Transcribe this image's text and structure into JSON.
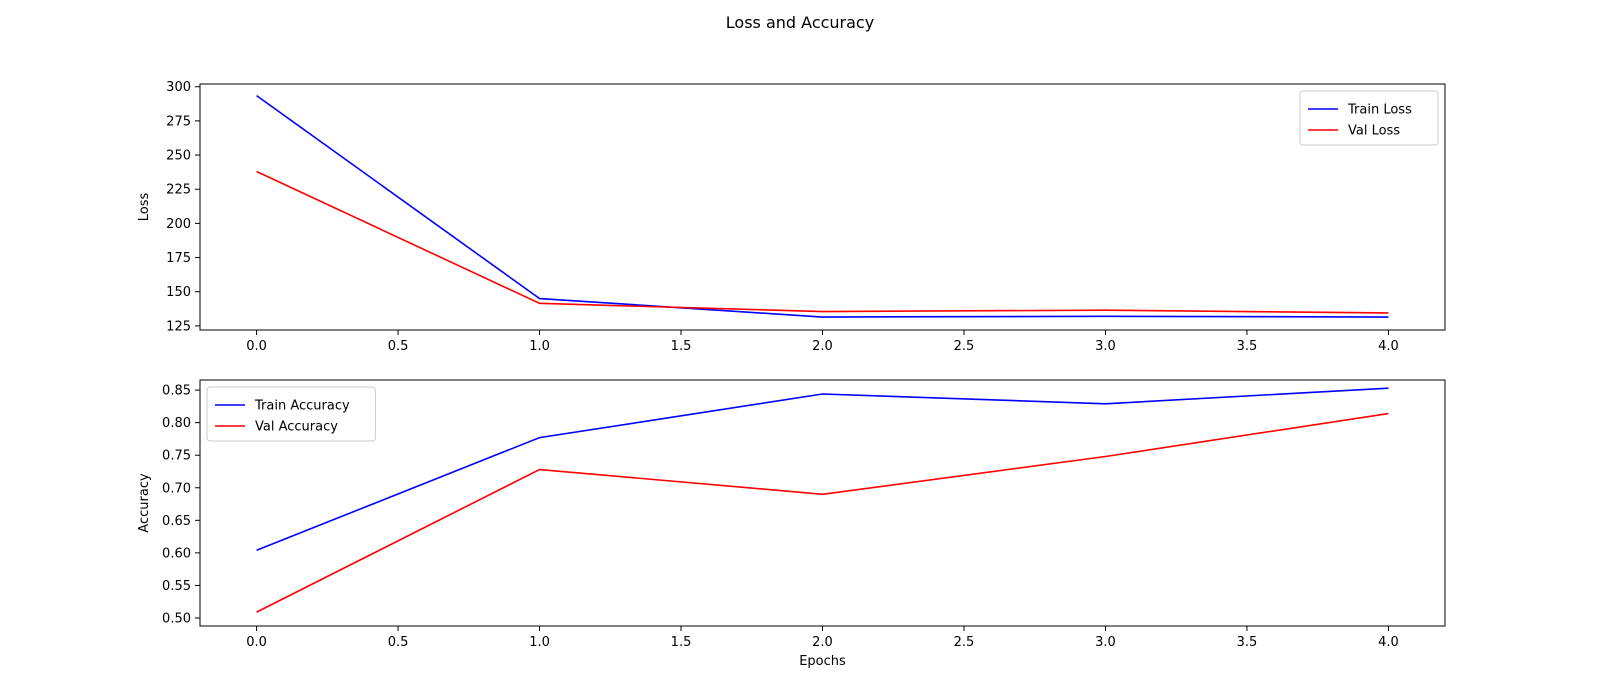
{
  "figure": {
    "title": "Loss and Accuracy"
  },
  "chart_data": [
    {
      "type": "line",
      "title": "",
      "xlabel": "",
      "ylabel": "Loss",
      "xlim": [
        -0.2,
        4.2
      ],
      "ylim": [
        122,
        302
      ],
      "xticks": [
        0.0,
        0.5,
        1.0,
        1.5,
        2.0,
        2.5,
        3.0,
        3.5,
        4.0
      ],
      "xtick_labels": [
        "0.0",
        "0.5",
        "1.0",
        "1.5",
        "2.0",
        "2.5",
        "3.0",
        "3.5",
        "4.0"
      ],
      "yticks": [
        125,
        150,
        175,
        200,
        225,
        250,
        275,
        300
      ],
      "ytick_labels": [
        "125",
        "150",
        "175",
        "200",
        "225",
        "250",
        "275",
        "300"
      ],
      "grid": false,
      "legend_position": "top-right",
      "x": [
        0,
        1,
        2,
        3,
        4
      ],
      "series": [
        {
          "name": "Train Loss",
          "color": "#0000ff",
          "values": [
            293.5,
            145.0,
            131.5,
            132.0,
            131.5
          ]
        },
        {
          "name": "Val Loss",
          "color": "#ff0000",
          "values": [
            238.0,
            141.5,
            135.5,
            136.5,
            134.5
          ]
        }
      ]
    },
    {
      "type": "line",
      "title": "",
      "xlabel": "Epochs",
      "ylabel": "Accuracy",
      "xlim": [
        -0.2,
        4.2
      ],
      "ylim": [
        0.4877,
        0.8655
      ],
      "xticks": [
        0.0,
        0.5,
        1.0,
        1.5,
        2.0,
        2.5,
        3.0,
        3.5,
        4.0
      ],
      "xtick_labels": [
        "0.0",
        "0.5",
        "1.0",
        "1.5",
        "2.0",
        "2.5",
        "3.0",
        "3.5",
        "4.0"
      ],
      "yticks": [
        0.5,
        0.55,
        0.6,
        0.65,
        0.7,
        0.75,
        0.8,
        0.85
      ],
      "ytick_labels": [
        "0.50",
        "0.55",
        "0.60",
        "0.65",
        "0.70",
        "0.75",
        "0.80",
        "0.85"
      ],
      "grid": false,
      "legend_position": "top-left",
      "x": [
        0,
        1,
        2,
        3,
        4
      ],
      "series": [
        {
          "name": "Train Accuracy",
          "color": "#0000ff",
          "values": [
            0.604,
            0.777,
            0.844,
            0.829,
            0.853
          ]
        },
        {
          "name": "Val Accuracy",
          "color": "#ff0000",
          "values": [
            0.509,
            0.728,
            0.69,
            0.748,
            0.814
          ]
        }
      ]
    }
  ]
}
